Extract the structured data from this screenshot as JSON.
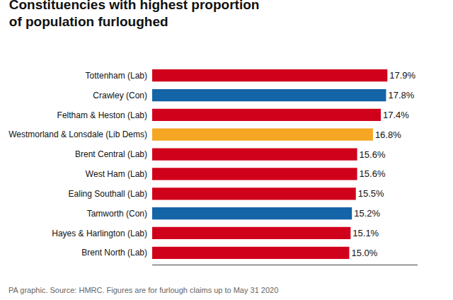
{
  "chart_data": {
    "type": "bar",
    "orientation": "horizontal",
    "title": "Constituencies with highest proportion\nof population furloughed",
    "categories": [
      "Brent North (Lab)",
      "Hayes & Harlington (Lab)",
      "Tamworth (Con)",
      "Ealing Southall (Lab)",
      "West Ham (Lab)",
      "Brent Central (Lab)",
      "Westmorland & Lonsdale (Lib Dems)",
      "Feltham & Heston (Lab)",
      "Crawley (Con)",
      "Tottenham (Lab)"
    ],
    "values": [
      15.0,
      15.1,
      15.2,
      15.5,
      15.6,
      15.6,
      16.8,
      17.4,
      17.8,
      17.9
    ],
    "value_labels": [
      "15.0%",
      "15.1%",
      "15.2%",
      "15.5%",
      "15.6%",
      "15.6%",
      "16.8%",
      "17.4%",
      "17.8%",
      "17.9%"
    ],
    "data_labels": true,
    "colors": [
      "#d0021b",
      "#d0021b",
      "#1464a8",
      "#d0021b",
      "#d0021b",
      "#d0021b",
      "#f5a623",
      "#d0021b",
      "#1464a8",
      "#d0021b"
    ],
    "xlim": [
      0,
      20.2
    ],
    "tick_labels": "y",
    "grid": false,
    "annotations": [
      "PA graphic. Source: HMRC. Figures are for furlough claims up to May 31 2020"
    ]
  }
}
